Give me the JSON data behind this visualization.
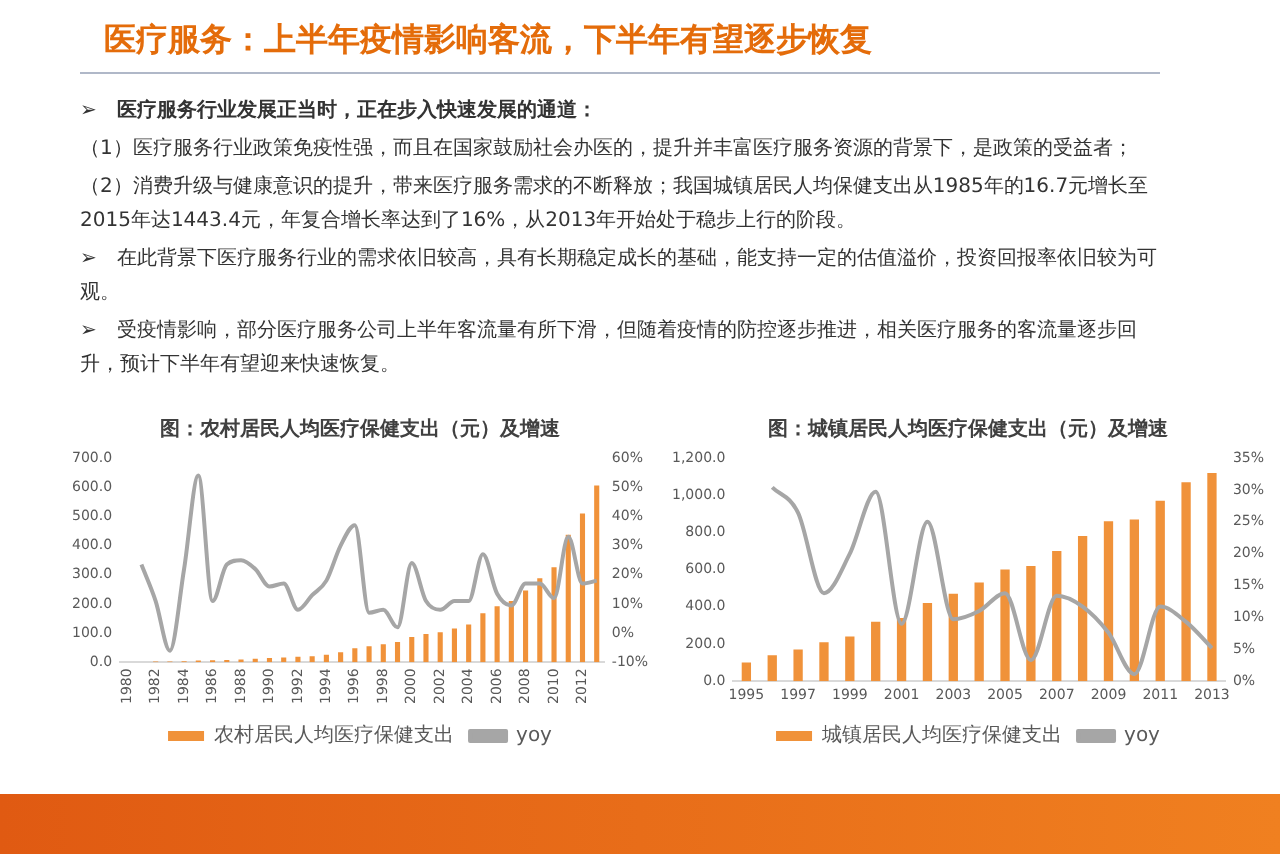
{
  "chart_data": [
    {
      "type": "other",
      "title": "医疗服务：上半年疫情影响客流，下半年有望逐步恢复",
      "annotations": [
        "➢　医疗服务行业发展正当时，正在步入快速发展的通道：",
        "（1）医疗服务行业政策免疫性强，而且在国家鼓励社会办医的，提升并丰富医疗服务资源的背景下，是政策的受益者；",
        "（2）消费升级与健康意识的提升，带来医疗服务需求的不断释放；我国城镇居民人均保健支出从1985年的16.7元增长至2015年达1443.4元，年复合增长率达到了16%，从2013年开始处于稳步上行的阶段。",
        "➢　在此背景下医疗服务行业的需求依旧较高，具有长期稳定成长的基础，能支持一定的估值溢价，投资回报率依旧较为可观。",
        "➢　受疫情影响，部分医疗服务公司上半年客流量有所下滑，但随着疫情的防控逐步推进，相关医疗服务的客流量逐步回升，预计下半年有望迎来快速恢复。"
      ]
    },
    {
      "type": "bar",
      "title": "图：农村居民人均医疗保健支出（元）及增速",
      "legend": "bottom",
      "grid": false,
      "marker": "none",
      "categories": [
        "1980",
        null,
        "1982",
        null,
        "1984",
        null,
        "1986",
        null,
        "1988",
        null,
        "1990",
        null,
        "1992",
        null,
        "1994",
        null,
        "1996",
        null,
        "1998",
        null,
        "2000",
        null,
        "2002",
        null,
        "2004",
        null,
        "2006",
        null,
        "2008",
        null,
        "2010",
        null,
        "2012",
        null
      ],
      "ylim": [
        0,
        700
      ],
      "yticks": [
        {
          "value": 0,
          "label": "0.0"
        },
        {
          "value": 100,
          "label": "100.0"
        },
        {
          "value": 200,
          "label": "200.0"
        },
        {
          "value": 300,
          "label": "300.0"
        },
        {
          "value": 400,
          "label": "400.0"
        },
        {
          "value": 500,
          "label": "500.0"
        },
        {
          "value": 600,
          "label": "600.0"
        },
        {
          "value": 700,
          "label": "700.0"
        }
      ],
      "y2lim": [
        -10,
        60
      ],
      "y2ticks": [
        {
          "value": -10,
          "label": "-10%"
        },
        {
          "value": 0,
          "label": "0%"
        },
        {
          "value": 10,
          "label": "10%"
        },
        {
          "value": 20,
          "label": "20%"
        },
        {
          "value": 30,
          "label": "30%"
        },
        {
          "value": 40,
          "label": "40%"
        },
        {
          "value": 50,
          "label": "50%"
        },
        {
          "value": 60,
          "label": "60%"
        }
      ],
      "series": [
        {
          "name": "农村居民人均医疗保健支出",
          "type": "bar",
          "color": "#f0923a",
          "values": [
            null,
            null,
            3,
            3,
            4,
            6,
            7,
            8,
            10,
            12,
            15,
            17,
            19,
            21,
            26,
            35,
            48,
            55,
            62,
            70,
            87,
            97,
            103,
            116,
            130,
            168,
            192,
            210,
            246,
            288,
            326,
            437,
            510,
            606
          ]
        },
        {
          "name": "yoy",
          "type": "line",
          "axis": "y2",
          "color": "#a6a6a6",
          "values": [
            null,
            23.5,
            11,
            -6,
            22,
            54,
            11,
            23.5,
            25,
            22,
            16,
            17,
            8,
            13,
            18,
            30,
            37,
            7,
            8,
            2,
            24,
            11,
            8,
            11,
            11,
            27,
            13.5,
            9.5,
            17,
            17,
            12,
            33,
            17,
            18
          ]
        }
      ]
    },
    {
      "type": "bar",
      "title": "图：城镇居民人均医疗保健支出（元）及增速",
      "legend": "bottom",
      "grid": false,
      "marker": "none",
      "categories": [
        "1995",
        null,
        "1997",
        null,
        "1999",
        null,
        "2001",
        null,
        "2003",
        null,
        "2005",
        null,
        "2007",
        null,
        "2009",
        null,
        "2011",
        null,
        "2013"
      ],
      "ylim": [
        0,
        1200
      ],
      "yticks": [
        {
          "value": 0,
          "label": "0.0"
        },
        {
          "value": 200,
          "label": "200.0"
        },
        {
          "value": 400,
          "label": "400.0"
        },
        {
          "value": 600,
          "label": "600.0"
        },
        {
          "value": 800,
          "label": "800.0"
        },
        {
          "value": 1000,
          "label": "1,000.0"
        },
        {
          "value": 1200,
          "label": "1,200.0"
        }
      ],
      "y2lim": [
        0,
        35
      ],
      "y2ticks": [
        {
          "value": 0,
          "label": "0%"
        },
        {
          "value": 5,
          "label": "5%"
        },
        {
          "value": 10,
          "label": "10%"
        },
        {
          "value": 15,
          "label": "15%"
        },
        {
          "value": 20,
          "label": "20%"
        },
        {
          "value": 25,
          "label": "25%"
        },
        {
          "value": 30,
          "label": "30%"
        },
        {
          "value": 35,
          "label": "35%"
        }
      ],
      "series": [
        {
          "name": "城镇居民人均医疗保健支出",
          "type": "bar",
          "color": "#f0923a",
          "values": [
            100,
            140,
            170,
            210,
            240,
            320,
            340,
            420,
            470,
            530,
            600,
            620,
            700,
            780,
            860,
            870,
            970,
            1070,
            1120
          ]
        },
        {
          "name": "yoy",
          "type": "line",
          "axis": "y2",
          "color": "#a6a6a6",
          "values": [
            null,
            30.4,
            26.4,
            13.8,
            20,
            29.7,
            9,
            25,
            9.7,
            11,
            13.8,
            3.3,
            13.4,
            11.7,
            7.6,
            1.1,
            11.7,
            9.3,
            5.2
          ]
        }
      ]
    }
  ]
}
